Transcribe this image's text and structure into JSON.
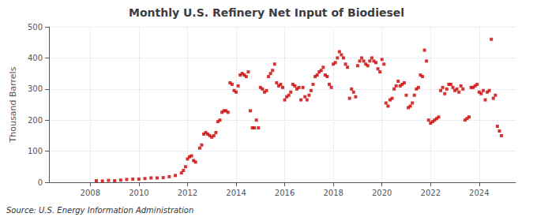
{
  "chart_data": {
    "type": "scatter",
    "title": "Monthly U.S. Refinery Net Input of Biodiesel",
    "ylabel": "Thousand Barrels",
    "annotations": [
      "Source: U.S. Energy Information Administration"
    ],
    "color": "#cc0000",
    "marker": "square",
    "grid": true,
    "xlim": [
      2006.3,
      2025.5
    ],
    "xticks": [
      2008,
      2010,
      2012,
      2014,
      2016,
      2018,
      2020,
      2022,
      2024
    ],
    "ylim": [
      0,
      500
    ],
    "yticks": [
      0,
      100,
      200,
      300,
      400,
      500
    ],
    "x": [
      2008.25,
      2008.5,
      2008.75,
      2009.0,
      2009.25,
      2009.5,
      2009.75,
      2010.0,
      2010.25,
      2010.5,
      2010.75,
      2011.0,
      2011.25,
      2011.5,
      2011.75,
      2011.833,
      2011.917,
      2012.0,
      2012.083,
      2012.167,
      2012.25,
      2012.333,
      2012.5,
      2012.583,
      2012.667,
      2012.75,
      2012.833,
      2012.917,
      2013.0,
      2013.083,
      2013.167,
      2013.25,
      2013.333,
      2013.417,
      2013.5,
      2013.583,
      2013.667,
      2013.75,
      2013.833,
      2013.917,
      2014.0,
      2014.083,
      2014.167,
      2014.25,
      2014.333,
      2014.417,
      2014.5,
      2014.583,
      2014.667,
      2014.75,
      2014.833,
      2014.917,
      2015.0,
      2015.083,
      2015.167,
      2015.25,
      2015.333,
      2015.417,
      2015.5,
      2015.583,
      2015.667,
      2015.75,
      2015.833,
      2015.917,
      2016.0,
      2016.083,
      2016.167,
      2016.25,
      2016.333,
      2016.417,
      2016.5,
      2016.583,
      2016.667,
      2016.75,
      2016.833,
      2016.917,
      2017.0,
      2017.083,
      2017.167,
      2017.25,
      2017.333,
      2017.417,
      2017.5,
      2017.583,
      2017.667,
      2017.75,
      2017.833,
      2017.917,
      2018.0,
      2018.083,
      2018.167,
      2018.25,
      2018.333,
      2018.417,
      2018.5,
      2018.583,
      2018.667,
      2018.75,
      2018.833,
      2018.917,
      2019.0,
      2019.083,
      2019.167,
      2019.25,
      2019.333,
      2019.417,
      2019.5,
      2019.583,
      2019.667,
      2019.75,
      2019.833,
      2019.917,
      2020.0,
      2020.083,
      2020.167,
      2020.25,
      2020.333,
      2020.417,
      2020.5,
      2020.583,
      2020.667,
      2020.75,
      2020.833,
      2020.917,
      2021.0,
      2021.083,
      2021.167,
      2021.25,
      2021.333,
      2021.417,
      2021.5,
      2021.583,
      2021.667,
      2021.75,
      2021.833,
      2021.917,
      2022.0,
      2022.083,
      2022.167,
      2022.25,
      2022.333,
      2022.417,
      2022.5,
      2022.583,
      2022.667,
      2022.75,
      2022.833,
      2022.917,
      2023.0,
      2023.083,
      2023.167,
      2023.25,
      2023.333,
      2023.417,
      2023.5,
      2023.583,
      2023.667,
      2023.75,
      2023.833,
      2023.917,
      2024.0,
      2024.083,
      2024.167,
      2024.25,
      2024.333,
      2024.417,
      2024.5,
      2024.583,
      2024.667,
      2024.75,
      2024.833,
      2024.917
    ],
    "values": [
      5,
      4,
      6,
      5,
      7,
      9,
      10,
      10,
      12,
      14,
      14,
      15,
      18,
      22,
      30,
      38,
      50,
      75,
      82,
      85,
      70,
      65,
      110,
      120,
      155,
      160,
      155,
      150,
      145,
      150,
      160,
      195,
      200,
      225,
      230,
      230,
      225,
      320,
      315,
      295,
      290,
      310,
      345,
      350,
      345,
      340,
      355,
      230,
      175,
      175,
      200,
      175,
      305,
      300,
      290,
      295,
      340,
      350,
      360,
      380,
      320,
      310,
      315,
      305,
      265,
      275,
      280,
      290,
      315,
      310,
      300,
      305,
      265,
      305,
      275,
      265,
      280,
      295,
      315,
      340,
      345,
      355,
      360,
      370,
      345,
      340,
      315,
      305,
      380,
      385,
      400,
      420,
      410,
      400,
      380,
      370,
      270,
      300,
      290,
      275,
      375,
      390,
      400,
      390,
      380,
      375,
      390,
      400,
      390,
      385,
      365,
      355,
      395,
      380,
      255,
      245,
      265,
      270,
      300,
      310,
      325,
      310,
      315,
      320,
      280,
      240,
      245,
      255,
      280,
      300,
      305,
      345,
      340,
      425,
      390,
      200,
      190,
      195,
      200,
      205,
      210,
      295,
      305,
      285,
      300,
      315,
      315,
      305,
      295,
      300,
      290,
      310,
      300,
      200,
      205,
      210,
      305,
      305,
      310,
      315,
      290,
      285,
      295,
      265,
      290,
      295,
      460,
      270,
      280,
      180,
      165,
      150
    ]
  }
}
